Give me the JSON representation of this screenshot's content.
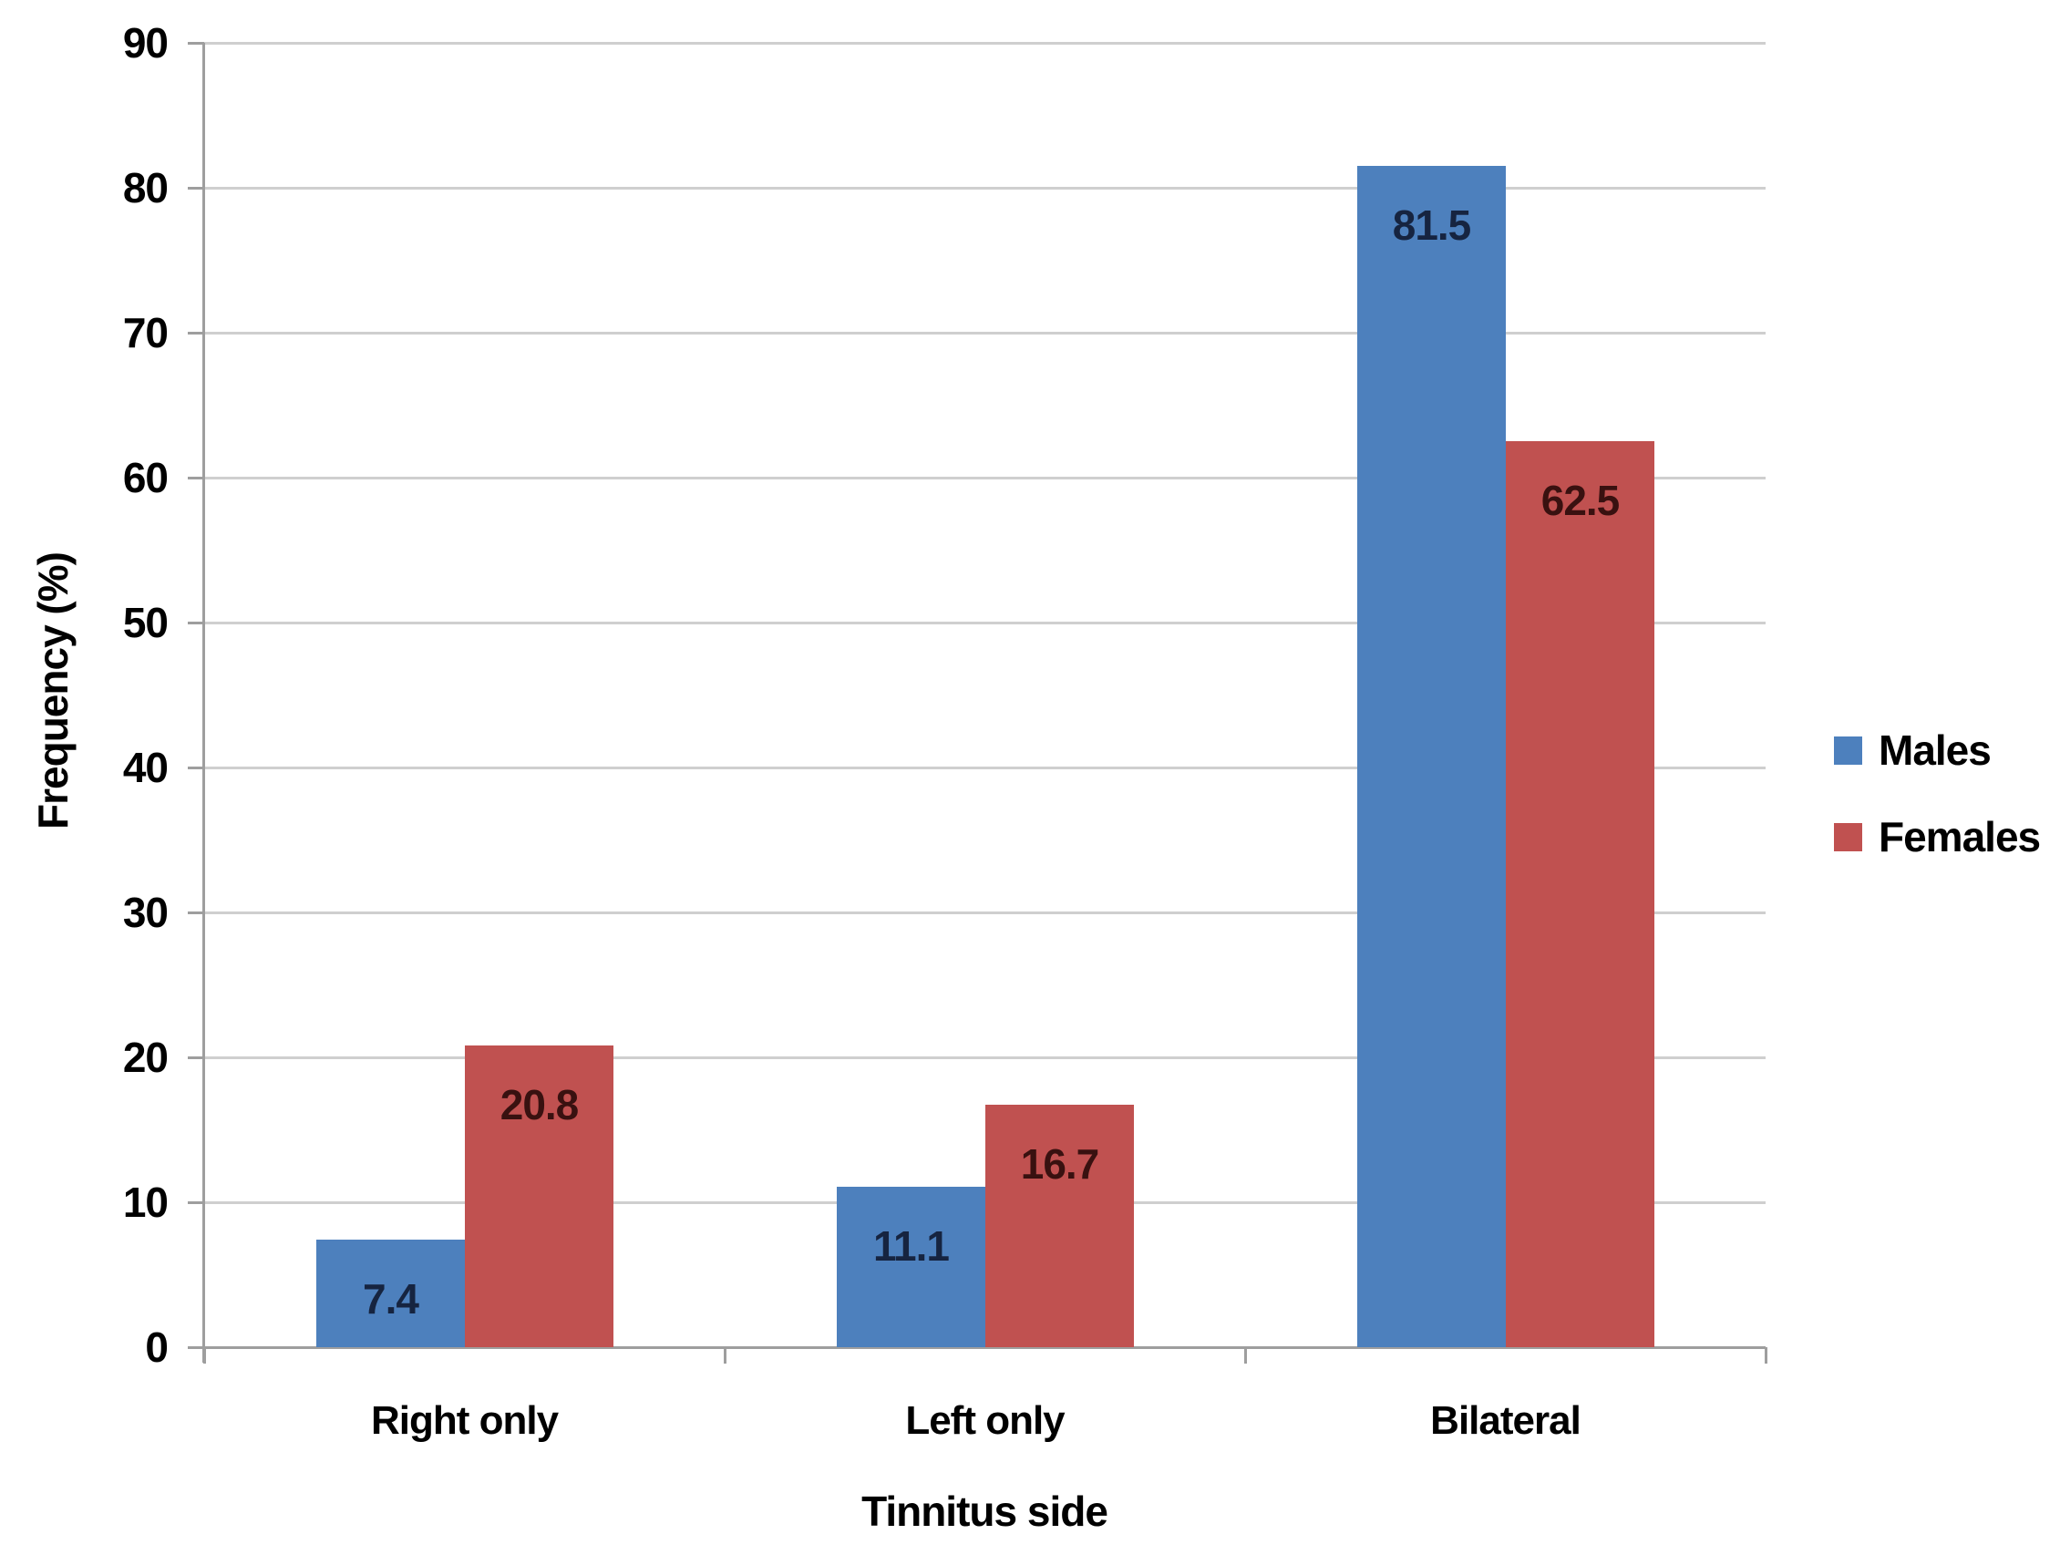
{
  "chart_data": {
    "type": "bar",
    "categories": [
      "Right only",
      "Left only",
      "Bilateral"
    ],
    "series": [
      {
        "name": "Males",
        "color": "#4d80bd",
        "label_color": "#162440",
        "values": [
          7.4,
          11.1,
          81.5
        ]
      },
      {
        "name": "Females",
        "color": "#c05150",
        "label_color": "#391110",
        "values": [
          20.8,
          16.7,
          62.5
        ]
      }
    ],
    "xlabel": "Tinnitus side",
    "ylabel": "Frequency (%)",
    "ylim": [
      0,
      90
    ],
    "yticks": [
      0,
      10,
      20,
      30,
      40,
      50,
      60,
      70,
      80,
      90
    ],
    "grid": "horizontal",
    "legend_position": "right",
    "data_labels": "inside-end",
    "data_label_values": [
      "7.4",
      "11.1",
      "81.5",
      "20.8",
      "16.7",
      "62.5"
    ]
  }
}
